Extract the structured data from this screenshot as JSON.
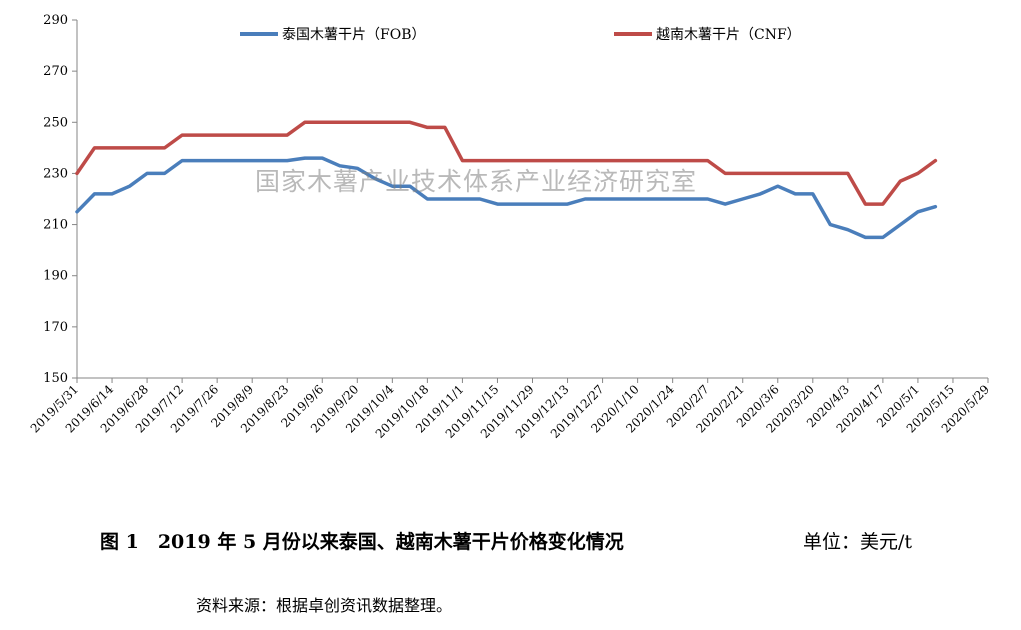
{
  "chart_data": {
    "type": "line",
    "title": "",
    "xlabel": "",
    "ylabel": "",
    "ylim": [
      150,
      290
    ],
    "ystep": 20,
    "grid": false,
    "legend_position": "top",
    "x_tick_labels": [
      "2019/5/31",
      "2019/6/14",
      "2019/6/28",
      "2019/7/12",
      "2019/7/26",
      "2019/8/9",
      "2019/8/23",
      "2019/9/6",
      "2019/9/20",
      "2019/10/4",
      "2019/10/18",
      "2019/11/1",
      "2019/11/15",
      "2019/11/29",
      "2019/12/13",
      "2019/12/27",
      "2020/1/10",
      "2020/1/24",
      "2020/2/7",
      "2020/2/21",
      "2020/3/6",
      "2020/3/20",
      "2020/4/3",
      "2020/4/17",
      "2020/5/1",
      "2020/5/15",
      "2020/5/29"
    ],
    "series": [
      {
        "name": "泰国木薯干片（FOB）",
        "color": "#4A7EBB",
        "x": [
          "2019/5/31",
          "2019/6/7",
          "2019/6/14",
          "2019/6/21",
          "2019/6/28",
          "2019/7/5",
          "2019/7/12",
          "2019/7/19",
          "2019/7/26",
          "2019/8/2",
          "2019/8/9",
          "2019/8/16",
          "2019/8/23",
          "2019/8/30",
          "2019/9/6",
          "2019/9/13",
          "2019/9/20",
          "2019/9/27",
          "2019/10/4",
          "2019/10/11",
          "2019/10/18",
          "2019/10/25",
          "2019/11/1",
          "2019/11/8",
          "2019/11/15",
          "2019/11/22",
          "2019/11/29",
          "2019/12/6",
          "2019/12/13",
          "2019/12/20",
          "2019/12/27",
          "2020/1/3",
          "2020/1/10",
          "2020/1/17",
          "2020/1/24",
          "2020/1/31",
          "2020/2/7",
          "2020/2/14",
          "2020/2/21",
          "2020/2/28",
          "2020/3/6",
          "2020/3/13",
          "2020/3/20",
          "2020/3/27",
          "2020/4/3",
          "2020/4/10",
          "2020/4/17",
          "2020/4/24",
          "2020/5/1",
          "2020/5/8"
        ],
        "values": [
          215,
          222,
          222,
          225,
          230,
          230,
          235,
          235,
          235,
          235,
          235,
          235,
          235,
          236,
          236,
          233,
          232,
          228,
          225,
          225,
          220,
          220,
          220,
          220,
          218,
          218,
          218,
          218,
          218,
          220,
          220,
          220,
          220,
          220,
          220,
          220,
          220,
          218,
          220,
          222,
          225,
          222,
          222,
          210,
          208,
          205,
          205,
          210,
          215,
          217
        ]
      },
      {
        "name": "越南木薯干片（CNF）",
        "color": "#BE4B48",
        "x": [
          "2019/5/31",
          "2019/6/7",
          "2019/6/14",
          "2019/6/21",
          "2019/6/28",
          "2019/7/5",
          "2019/7/12",
          "2019/7/19",
          "2019/7/26",
          "2019/8/2",
          "2019/8/9",
          "2019/8/16",
          "2019/8/23",
          "2019/8/30",
          "2019/9/6",
          "2019/9/13",
          "2019/9/20",
          "2019/9/27",
          "2019/10/4",
          "2019/10/11",
          "2019/10/18",
          "2019/10/25",
          "2019/11/1",
          "2019/11/8",
          "2019/11/15",
          "2019/11/22",
          "2019/11/29",
          "2019/12/6",
          "2019/12/13",
          "2019/12/20",
          "2019/12/27",
          "2020/1/3",
          "2020/1/10",
          "2020/1/17",
          "2020/1/24",
          "2020/1/31",
          "2020/2/7",
          "2020/2/14",
          "2020/2/21",
          "2020/2/28",
          "2020/3/6",
          "2020/3/13",
          "2020/3/20",
          "2020/3/27",
          "2020/4/3",
          "2020/4/10",
          "2020/4/17",
          "2020/4/24",
          "2020/5/1",
          "2020/5/8"
        ],
        "values": [
          230,
          240,
          240,
          240,
          240,
          240,
          245,
          245,
          245,
          245,
          245,
          245,
          245,
          250,
          250,
          250,
          250,
          250,
          250,
          250,
          248,
          248,
          235,
          235,
          235,
          235,
          235,
          235,
          235,
          235,
          235,
          235,
          235,
          235,
          235,
          235,
          235,
          230,
          230,
          230,
          230,
          230,
          230,
          230,
          230,
          218,
          218,
          227,
          230,
          235
        ]
      }
    ],
    "watermark": "国家木薯产业技术体系产业经济研究室"
  },
  "caption": {
    "figure": "图 1　2019 年 5 月份以来泰国、越南木薯干片价格变化情况",
    "unit": "单位：美元/t"
  },
  "source": "资料来源：根据卓创资讯数据整理。"
}
